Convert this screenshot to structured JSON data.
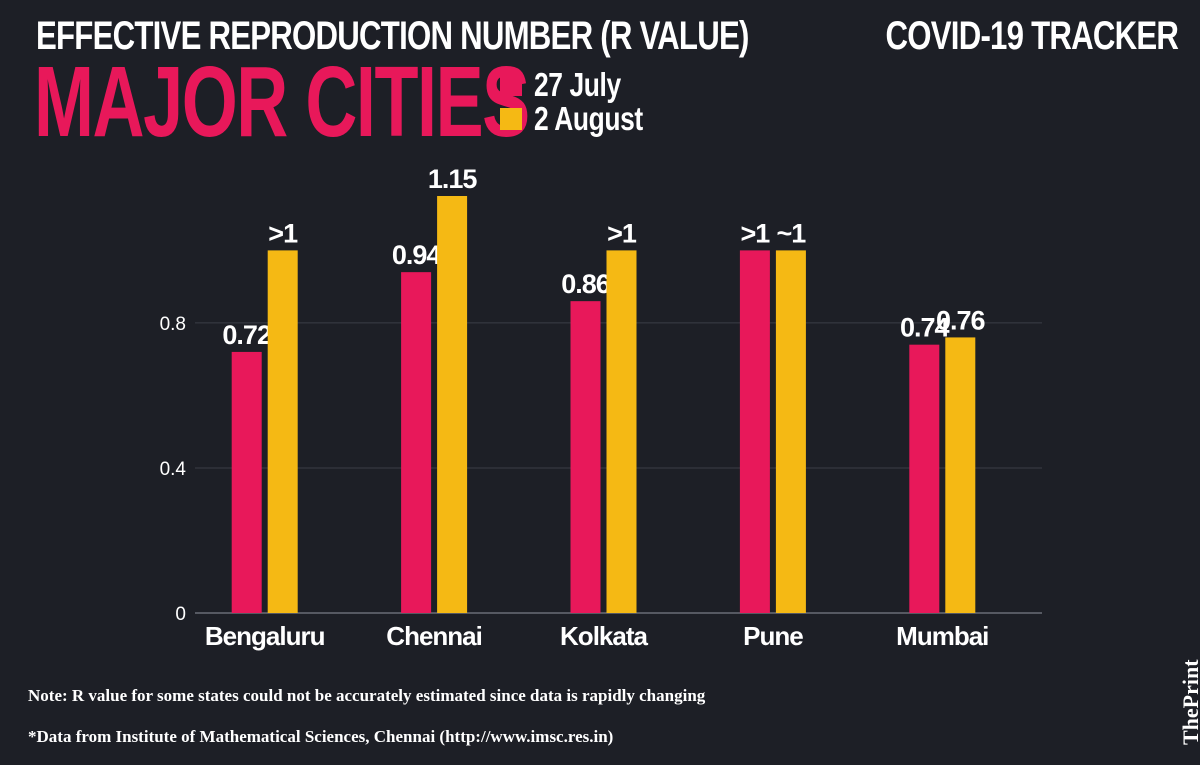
{
  "header": {
    "headline": "EFFECTIVE REPRODUCTION NUMBER (R VALUE)",
    "tracker": "COVID-19 TRACKER",
    "subtitle": "MAJOR CITIES"
  },
  "legend": [
    {
      "label": "27 July",
      "color": "#e8185a"
    },
    {
      "label": "2 August",
      "color": "#f5b914"
    }
  ],
  "chart_data": {
    "type": "bar",
    "categories": [
      "Bengaluru",
      "Chennai",
      "Kolkata",
      "Pune",
      "Mumbai"
    ],
    "series": [
      {
        "name": "27 July",
        "color": "#e8185a",
        "values": [
          0.72,
          0.94,
          0.86,
          1.0,
          0.74
        ],
        "labels": [
          "0.72",
          "0.94",
          "0.86",
          ">1",
          "0.74"
        ]
      },
      {
        "name": "2 August",
        "color": "#f5b914",
        "values": [
          1.0,
          1.15,
          1.0,
          1.0,
          0.76
        ],
        "labels": [
          ">1",
          "1.15",
          ">1",
          "~1",
          "0.76"
        ]
      }
    ],
    "yticks": [
      0,
      0.4,
      0.8
    ],
    "ytick_labels": [
      "0",
      "0.4",
      "0.8"
    ],
    "ylim": [
      0,
      1.15
    ],
    "grid": true
  },
  "footer": {
    "note": "Note: R value for some states could not be accurately estimated since data is rapidly changing",
    "source": "*Data from Institute of Mathematical Sciences, Chennai (http://www.imsc.res.in)",
    "brand": "ThePrint"
  }
}
